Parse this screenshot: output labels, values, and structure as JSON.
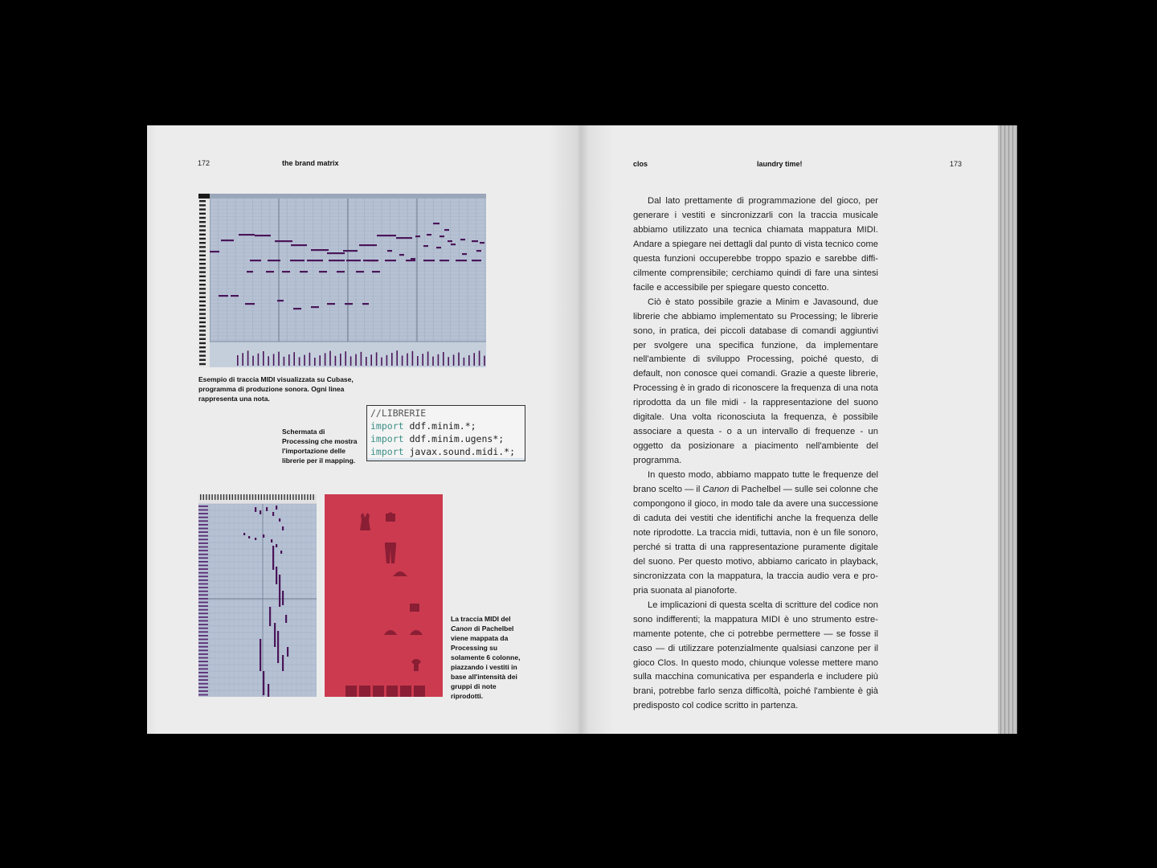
{
  "left_page": {
    "folio": "172",
    "running_head": "the brand matrix",
    "figure1_caption": "Esempio di traccia MIDI visualizzata su Cubase, programma di produzione sonora. Ogni linea rappresenta una nota.",
    "code_caption": "Schermata di Processing che mostra l'importazione delle librerie per il mapping.",
    "code": {
      "comment": "//LIBRERIE",
      "keyword": "import",
      "lines": [
        " ddf.minim.*;",
        " ddf.minim.ugens*;",
        " javax.sound.midi.*;"
      ]
    },
    "figure3_caption": {
      "pre": "La traccia MIDI del ",
      "title": "Canon",
      "post": " di Pachelbel viene mappata da Processing su solamente 6 colonne, piazzando i vestiti in base all'intensità dei gruppi di note riprodotti."
    }
  },
  "right_page": {
    "folio": "173",
    "running_head_left": "clos",
    "running_head_center": "laundry time!",
    "paragraphs": [
      "Dal lato prettamente di programmazione del gioco, per generare i vestiti e sincronizzarli con la traccia musicale abbiamo utilizzato una tecnica chiamata mappatura MIDI. Andare a spiegare nei dettagli dal punto di vista tecnico come questa funzioni occuperebbe troppo spazio e sarebbe diffi­cilmente comprensibile; cerchiamo quindi di fare una sintesi facile e accessibile per spiegare questo concetto.",
      "Ciò è stato possibile grazie a Minim e Javasound, due librerie che abbiamo implementato su Processing; le librerie sono, in pratica, dei piccoli database di comandi aggiuntivi per svolgere una specifica funzione, da implementare nell'am­biente di sviluppo Processing, poiché questo, di default, non conosce quei comandi. Grazie a queste librerie, Processing è in grado di riconoscere la frequenza di una nota riprodotta da un file midi - la rappresentazione del suono digitale. Una volta riconosciuta la frequenza, è possibile associare a questa - o a un intervallo di frequenze - un oggetto da posizionare a piacimento nell'ambiente del programma."
    ],
    "paragraph3": {
      "pre": "In questo modo, abbiamo mappato tutte le frequenze del brano scelto — il ",
      "title": "Canon",
      "post": " di Pachelbel — sulle sei colonne che compongono il gioco, in modo tale da avere una successione di caduta dei vestiti che identifichi anche la frequenza delle note riprodotte. La traccia midi, tuttavia, non è un file sonoro, perché si tratta di una rappresentazione puramente digitale del suono. Per questo motivo, abbiamo caricato in playback, sincronizzata con la mappatura, la traccia audio vera e pro­pria suonata al pianoforte."
    },
    "paragraph4": "Le implicazioni di questa scelta di scritture del codice non sono indifferenti; la mappatura MIDI è uno strumento estre­mamente potente, che ci potrebbe permettere — se fosse il caso — di utilizzare potenzialmente qualsiasi canzone per il gioco Clos. In questo modo, chiunque volesse mettere mano sulla macchina comunicativa per espanderla e includere più brani, potrebbe farlo senza difficoltà, poiché l'ambiente è già predisposto col codice scritto in partenza."
  },
  "colors": {
    "midi_grid": "#b6c2d4",
    "midi_note": "#4a1559",
    "game_red": "#cc3a4f",
    "game_item": "#8a1e34",
    "code_keyword": "#3a8f85"
  }
}
